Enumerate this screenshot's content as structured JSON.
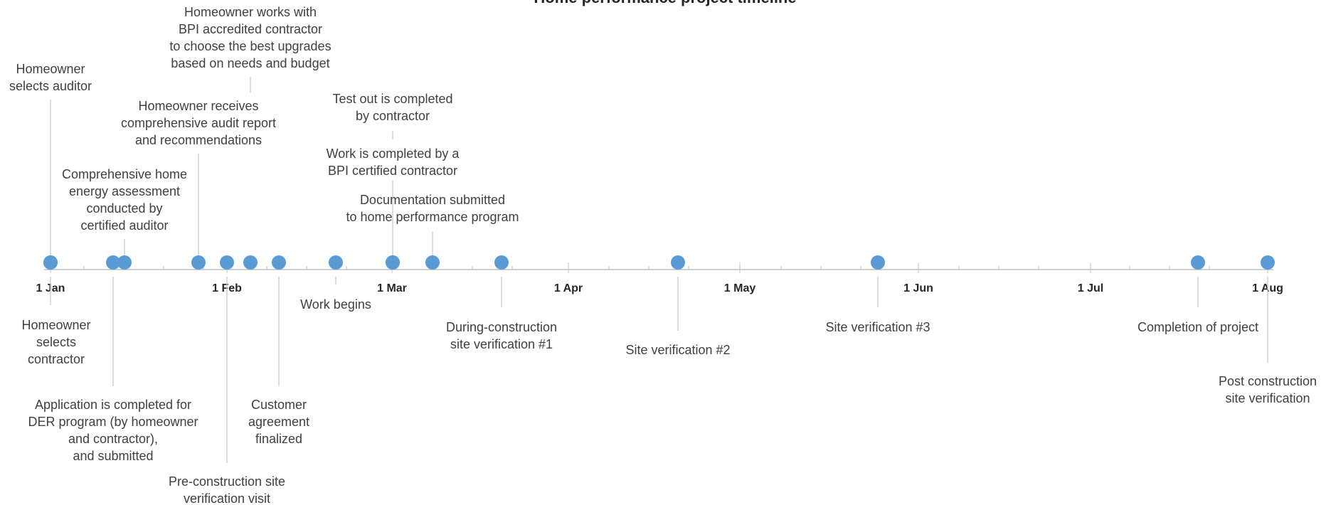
{
  "title": "Home performance project timeline",
  "accent_color": "#5b9bd5",
  "axis_color": "#bfbfbf",
  "connector_color": "#c9c9c9",
  "months": [
    "1 Jan",
    "1 Feb",
    "1 Mar",
    "1 Apr",
    "1 May",
    "1 Jun",
    "1 Jul",
    "1 Aug"
  ],
  "events": [
    {
      "label": [
        "Homeowner",
        "selects auditor"
      ]
    },
    {
      "label": [
        "Homeowner",
        "selects",
        "contractor"
      ]
    },
    {
      "label": [
        "Application is completed for",
        "DER program (by homeowner",
        "and contractor),",
        "and submitted"
      ]
    },
    {
      "label": [
        "Comprehensive home",
        "energy assessment",
        "conducted by",
        "certified auditor"
      ]
    },
    {
      "label": [
        "Homeowner receives",
        "comprehensive audit report",
        "and recommendations"
      ]
    },
    {
      "label": [
        "Pre-construction site",
        "verification visit"
      ]
    },
    {
      "label": [
        "Homeowner works with",
        "BPI accredited contractor",
        "to choose the best upgrades",
        "based on needs and budget"
      ]
    },
    {
      "label": [
        "Customer",
        "agreement",
        "finalized"
      ]
    },
    {
      "label": [
        "Work begins"
      ]
    },
    {
      "label": [
        "Work is completed by a",
        "BPI certified contractor"
      ]
    },
    {
      "label": [
        "Test out is completed",
        "by contractor"
      ]
    },
    {
      "label": [
        "Documentation submitted",
        "to home performance program"
      ]
    },
    {
      "label": [
        "During-construction",
        "site verification #1"
      ]
    },
    {
      "label": [
        "Site verification #2"
      ]
    },
    {
      "label": [
        "Site verification #3"
      ]
    },
    {
      "label": [
        "Completion of project"
      ]
    },
    {
      "label": [
        "Post construction",
        "site verification"
      ]
    }
  ]
}
